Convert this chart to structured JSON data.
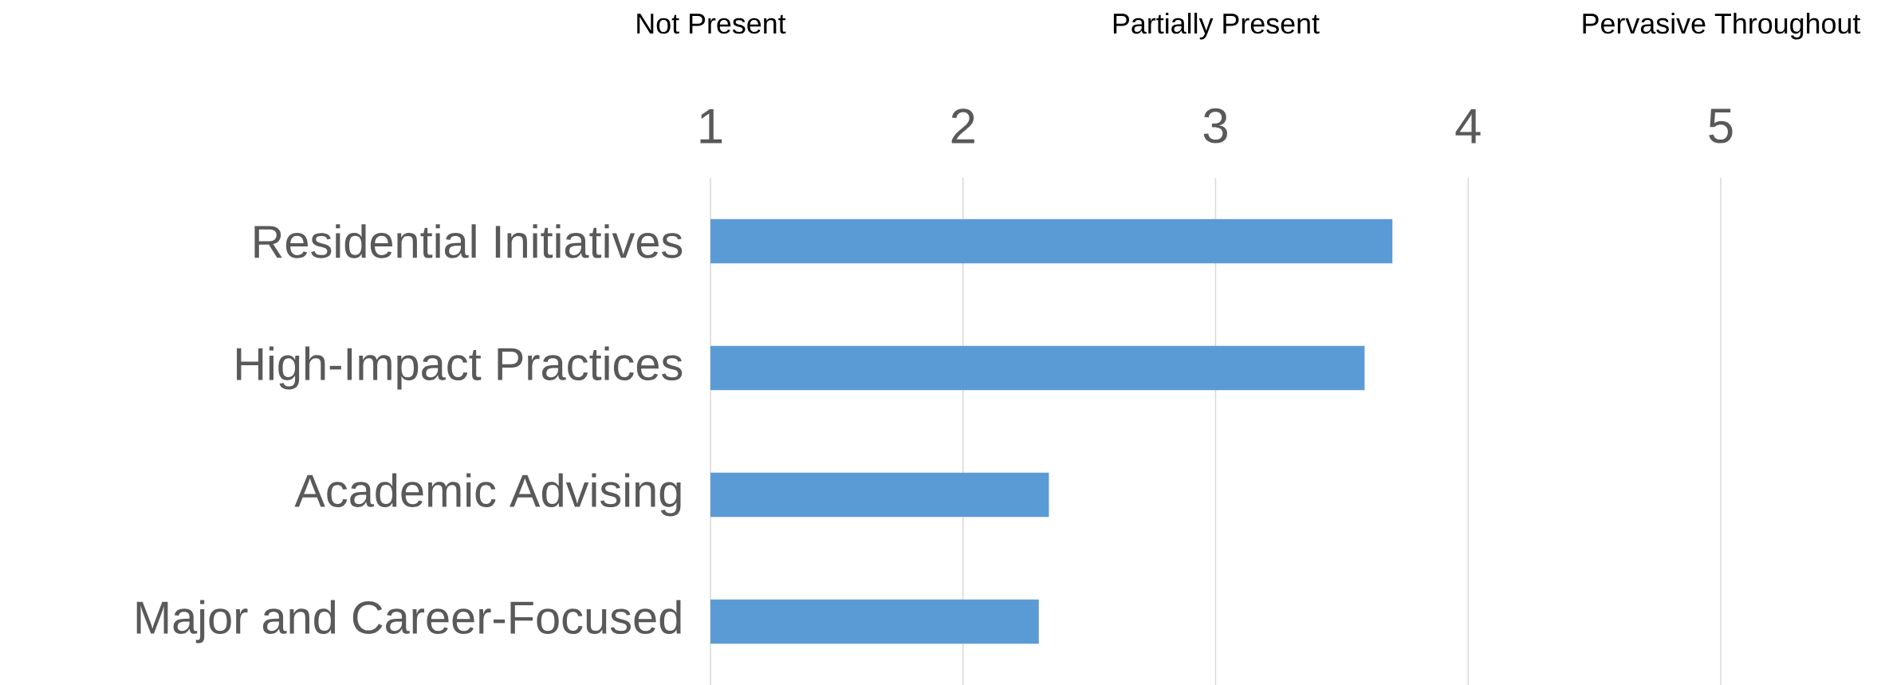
{
  "chart_data": {
    "type": "bar",
    "orientation": "horizontal",
    "categories": [
      "Residential Initiatives",
      "High-Impact Practices",
      "Academic Advising",
      "Major and Career-Focused"
    ],
    "values": [
      3.7,
      3.59,
      2.34,
      2.3
    ],
    "color": "#5b9bd5",
    "xlim": [
      1,
      5
    ],
    "xticks": [
      1,
      2,
      3,
      4,
      5
    ],
    "annotations": [
      "Not Present",
      "Partially Present",
      "Pervasive Throughout"
    ],
    "grid": "x"
  }
}
